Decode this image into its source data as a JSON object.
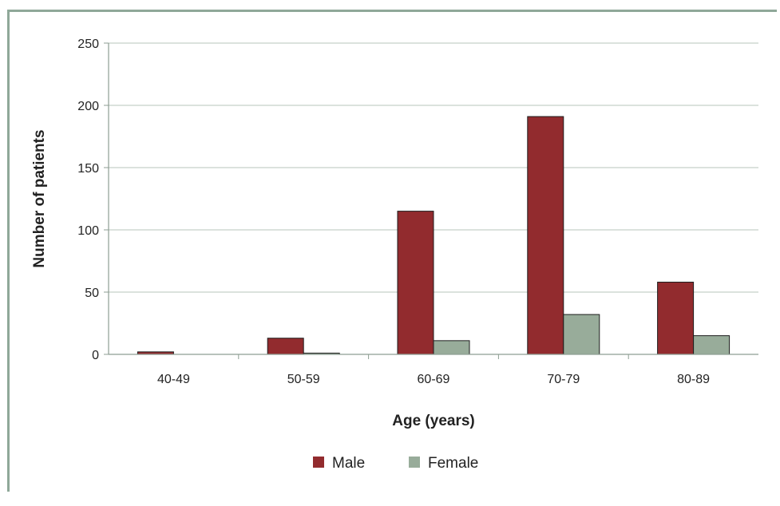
{
  "chart_data": {
    "type": "bar",
    "title": "",
    "xlabel": "Age (years)",
    "ylabel": "Number of patients",
    "categories": [
      "40-49",
      "50-59",
      "60-69",
      "70-79",
      "80-89"
    ],
    "series": [
      {
        "name": "Male",
        "color": "#922b2e",
        "values": [
          2,
          13,
          115,
          191,
          58
        ]
      },
      {
        "name": "Female",
        "color": "#98ac9a",
        "values": [
          0,
          1,
          11,
          32,
          15
        ]
      }
    ],
    "ylim": [
      0,
      250
    ],
    "yticks": [
      0,
      50,
      100,
      150,
      200,
      250
    ],
    "grid": true,
    "legend_position": "bottom"
  }
}
